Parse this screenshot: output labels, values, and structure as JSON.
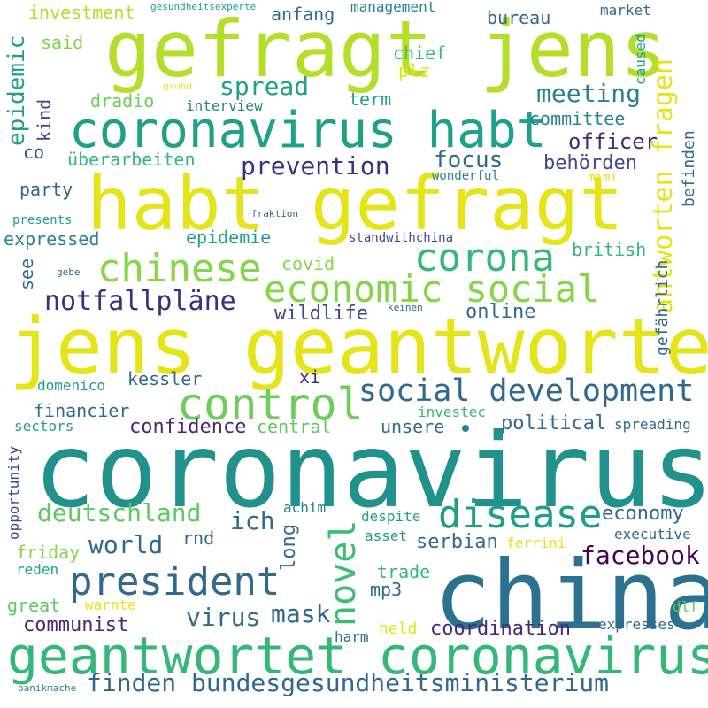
{
  "palette": {
    "yellow": "#e5e419",
    "lime": "#b5de2b",
    "light_green": "#86d549",
    "green": "#5ec962",
    "sea_green": "#35b779",
    "teal": "#1f9e89",
    "blue_teal": "#26828e",
    "steel_blue": "#31688e",
    "slate_blue": "#3e4989",
    "purple": "#482878",
    "dark_purple": "#440154"
  },
  "words": {
    "coronavirus": "coronavirus",
    "china": "china",
    "jens_geantwortet": "jens geantwortet",
    "habt_gefragt": "habt gefragt",
    "gefragt_jens": "gefragt jens",
    "geantwortet_coronavirus": "geantwortet coronavirus",
    "coronavirus_habt": "coronavirus habt",
    "finden_bundesgesundheitsministerium": "finden bundesgesundheitsministerium",
    "social_development": "social development",
    "economic_social": "economic social",
    "control": "control",
    "president": "president",
    "disease": "disease",
    "chinese": "chinese",
    "corona": "corona",
    "novel": "novel",
    "antworten_fragen": "antworten fragen",
    "notfallplaene": "notfallpläne",
    "prevention": "prevention",
    "deutschland": "deutschland",
    "facebook": "facebook",
    "world": "world",
    "meeting": "meeting",
    "spread": "spread",
    "ich": "ich",
    "focus": "focus",
    "epidemic": "epidemic",
    "virus": "virus",
    "mask": "mask",
    "officer": "officer",
    "behoerden": "behörden",
    "online": "online",
    "wildlife": "wildlife",
    "confidence": "confidence",
    "political": "political",
    "economy": "economy",
    "communist": "communist",
    "coordination": "coordination",
    "serbian": "serbian",
    "long": "long",
    "financier": "financier",
    "kessler": "kessler",
    "unsere": "unsere",
    "central": "central",
    "trade": "trade",
    "mp3": "mp3",
    "great": "great",
    "friday": "friday",
    "rnd": "rnd",
    "xi": "xi",
    "party": "party",
    "expressed": "expressed",
    "epidemie": "epidemie",
    "british": "british",
    "covid": "covid",
    "committee": "committee",
    "term": "term",
    "chief": "chief",
    "plz": "plz",
    "bureau": "bureau",
    "anfang": "anfang",
    "investment": "investment",
    "said": "said",
    "dradio": "dradio",
    "interview": "interview",
    "ueberarbeiten": "überarbeiten",
    "kind": "kind",
    "co": "co",
    "see": "see",
    "gefaehrlich": "gefährlich",
    "befinden": "befinden",
    "management": "management",
    "market": "market",
    "caused": "caused",
    "domenico": "domenico",
    "investec": "investec",
    "sectors": "sectors",
    "spreading": "spreading",
    "opportunity": "opportunity",
    "achim": "achim",
    "despite": "despite",
    "asset": "asset",
    "ferrini": "ferrini",
    "executive": "executive",
    "reden": "reden",
    "warnte": "warnte",
    "dlf": "dlf",
    "held": "held",
    "expresses": "expresses",
    "harm": "harm",
    "standwithchina": "standwithchina",
    "wonderful": "wonderful",
    "mimi": "mimi",
    "presents": "presents",
    "fraktion": "fraktion",
    "gesundheitsexperte": "gesundheitsexperte",
    "grund": "grund",
    "gebe": "gebe",
    "keinen": "keinen",
    "panikmache": "panikmache"
  }
}
